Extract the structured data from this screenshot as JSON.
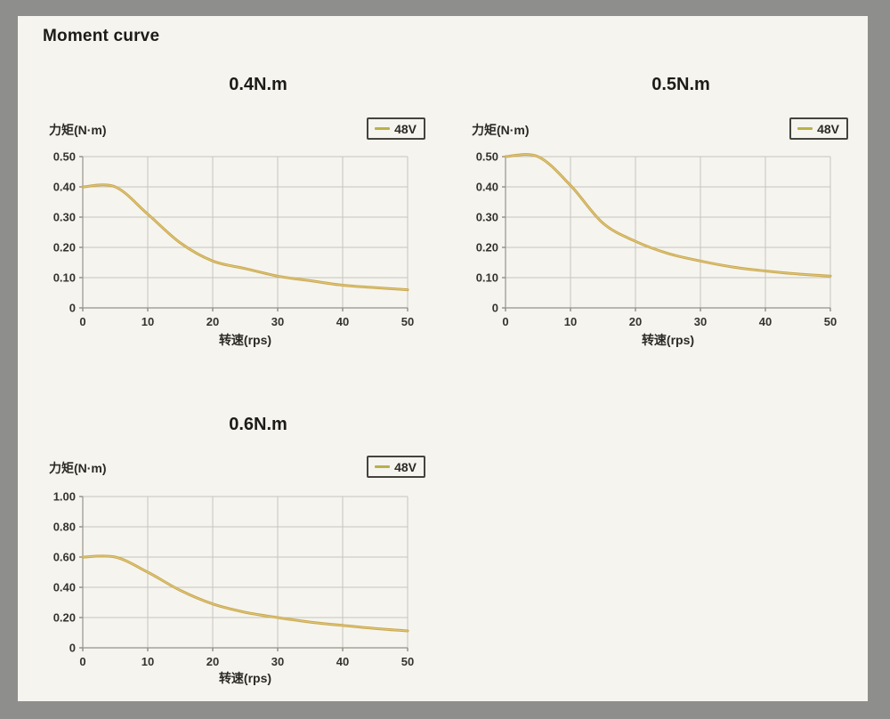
{
  "page_title": "Moment curve",
  "colors": {
    "frame": "#8e8e8c",
    "panel_bg": "#f5f4ee",
    "curve": "#c9a64f",
    "legend_line": "#b9b04a",
    "grid": "#c6c5bd",
    "text": "#2b2a26"
  },
  "chart_data": [
    {
      "type": "line",
      "title": "0.4N.m",
      "ylabel": "力矩(N·m)",
      "xlabel": "转速(rps)",
      "legend_entries": [
        "48V"
      ],
      "legend_position": "top-right",
      "grid": true,
      "xlim": [
        0,
        50
      ],
      "ylim": [
        0,
        0.5
      ],
      "xticks": [
        0,
        10,
        20,
        30,
        40,
        50
      ],
      "yticks": [
        0,
        0.1,
        0.2,
        0.3,
        0.4,
        0.5
      ],
      "ytick_labels": [
        "0",
        "0.10",
        "0.20",
        "0.30",
        "0.40",
        "0.50"
      ],
      "x": [
        0,
        5,
        10,
        15,
        20,
        25,
        30,
        35,
        40,
        45,
        50
      ],
      "series": [
        {
          "name": "48V",
          "values": [
            0.4,
            0.4,
            0.31,
            0.215,
            0.155,
            0.13,
            0.105,
            0.09,
            0.075,
            0.067,
            0.06
          ]
        }
      ]
    },
    {
      "type": "line",
      "title": "0.5N.m",
      "ylabel": "力矩(N·m)",
      "xlabel": "转速(rps)",
      "legend_entries": [
        "48V"
      ],
      "legend_position": "top-right",
      "grid": true,
      "xlim": [
        0,
        50
      ],
      "ylim": [
        0,
        0.5
      ],
      "xticks": [
        0,
        10,
        20,
        30,
        40,
        50
      ],
      "yticks": [
        0,
        0.1,
        0.2,
        0.3,
        0.4,
        0.5
      ],
      "ytick_labels": [
        "0",
        "0.10",
        "0.20",
        "0.30",
        "0.40",
        "0.50"
      ],
      "x": [
        0,
        5,
        10,
        15,
        20,
        25,
        30,
        35,
        40,
        45,
        50
      ],
      "series": [
        {
          "name": "48V",
          "values": [
            0.5,
            0.5,
            0.405,
            0.28,
            0.22,
            0.18,
            0.155,
            0.135,
            0.122,
            0.112,
            0.105
          ]
        }
      ]
    },
    {
      "type": "line",
      "title": "0.6N.m",
      "ylabel": "力矩(N·m)",
      "xlabel": "转速(rps)",
      "legend_entries": [
        "48V"
      ],
      "legend_position": "top-right",
      "grid": true,
      "xlim": [
        0,
        50
      ],
      "ylim": [
        0,
        1.0
      ],
      "xticks": [
        0,
        10,
        20,
        30,
        40,
        50
      ],
      "yticks": [
        0,
        0.2,
        0.4,
        0.6,
        0.8,
        1.0
      ],
      "ytick_labels": [
        "0",
        "0.20",
        "0.40",
        "0.60",
        "0.80",
        "1.00"
      ],
      "x": [
        0,
        5,
        10,
        15,
        20,
        25,
        30,
        35,
        40,
        45,
        50
      ],
      "series": [
        {
          "name": "48V",
          "values": [
            0.6,
            0.6,
            0.5,
            0.38,
            0.29,
            0.235,
            0.2,
            0.17,
            0.148,
            0.128,
            0.112
          ]
        }
      ]
    }
  ]
}
